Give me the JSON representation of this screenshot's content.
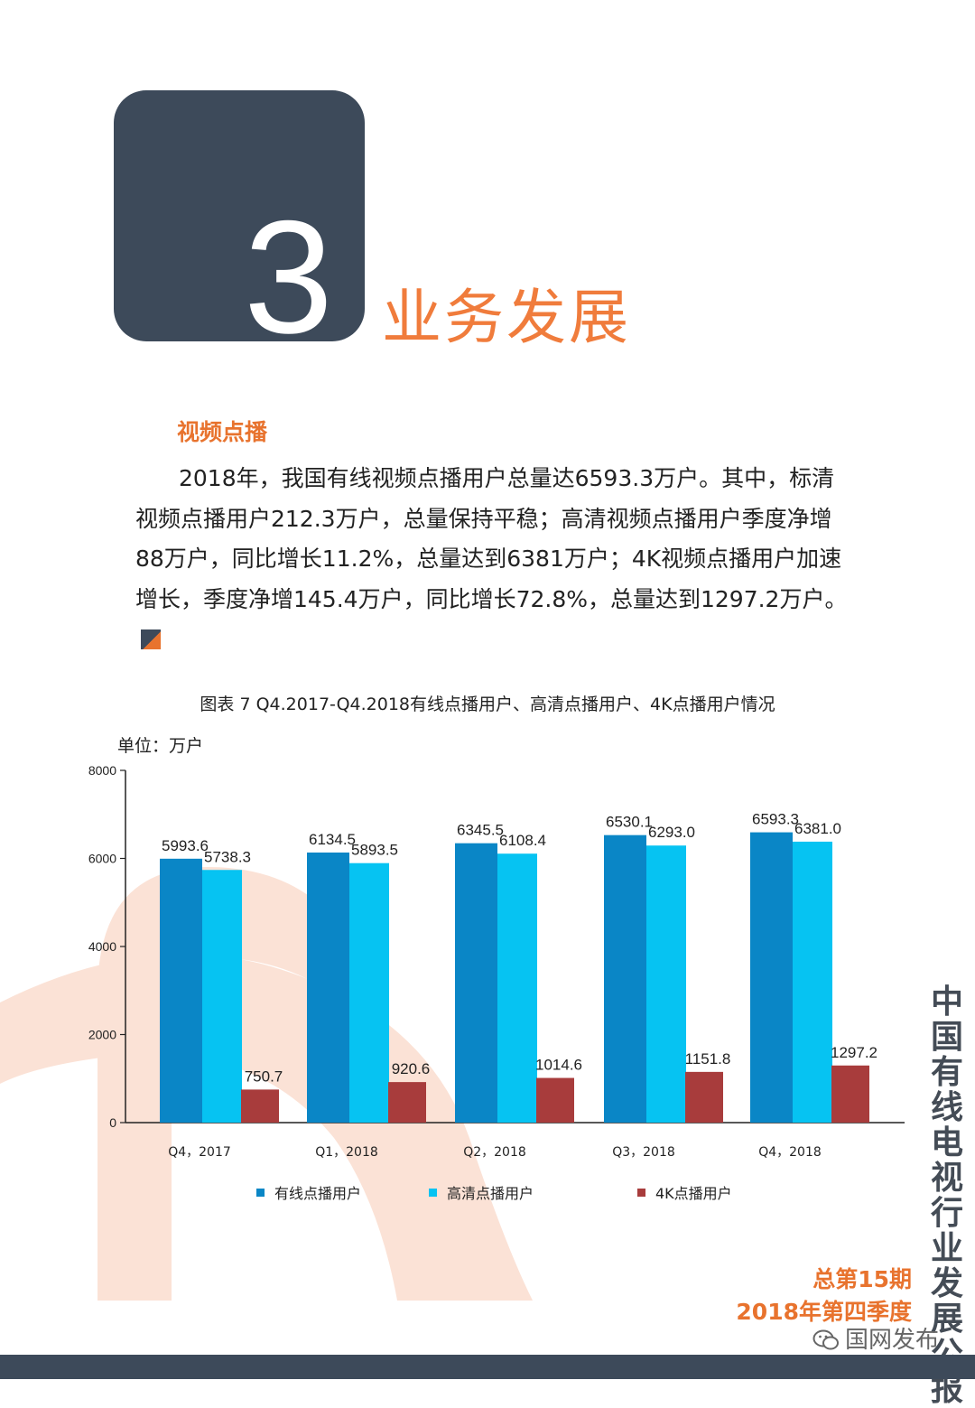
{
  "section": {
    "number": "3",
    "title": "业务发展"
  },
  "sub_heading": "视频点播",
  "paragraph": "2018年，我国有线视频点播用户总量达6593.3万户。其中，标清视频点播用户212.3万户，总量保持平稳；高清视频点播用户季度净增88万户，同比增长11.2%，总量达到6381万户；4K视频点播用户加速增长，季度净增145.4万户，同比增长72.8%，总量达到1297.2万户。",
  "chart_data": {
    "type": "bar",
    "title": "图表 7 Q4.2017-Q4.2018有线点播用户、高清点播用户、4K点播用户情况",
    "unit": "单位：万户",
    "categories": [
      "Q4，2017",
      "Q1，2018",
      "Q2，2018",
      "Q3，2018",
      "Q4，2018"
    ],
    "y_ticks": [
      "0",
      "2000",
      "4000",
      "6000",
      "8000"
    ],
    "ylim": [
      0,
      8000
    ],
    "grid": false,
    "legend_position": "bottom",
    "series": [
      {
        "name": "有线点播用户",
        "color": "#0a86c6",
        "values": [
          5993.6,
          6134.5,
          6345.5,
          6530.1,
          6593.3
        ],
        "labels": [
          "5993.6",
          "6134.5",
          "6345.5",
          "6530.1",
          "6593.3"
        ]
      },
      {
        "name": "高清点播用户",
        "color": "#06c3f2",
        "values": [
          5738.3,
          5893.5,
          6108.4,
          6293.0,
          6381.0
        ],
        "labels": [
          "5738.3",
          "5893.5",
          "6108.4",
          "6293.0",
          "6381.0"
        ]
      },
      {
        "name": "4K点播用户",
        "color": "#a83c3c",
        "values": [
          750.7,
          920.6,
          1014.6,
          1151.8,
          1297.2
        ],
        "labels": [
          "750.7",
          "920.6",
          "1014.6",
          "1151.8",
          "1297.2"
        ]
      }
    ]
  },
  "sidebar_title": "中国有线电视行业发展公报",
  "issue": {
    "total": "总第15期",
    "quarter": "2018年第四季度"
  },
  "watermark": "国网发布",
  "colors": {
    "navy": "#3d4a5a",
    "orange": "#f07c3c",
    "deco_peach": "#fbe2d6"
  }
}
